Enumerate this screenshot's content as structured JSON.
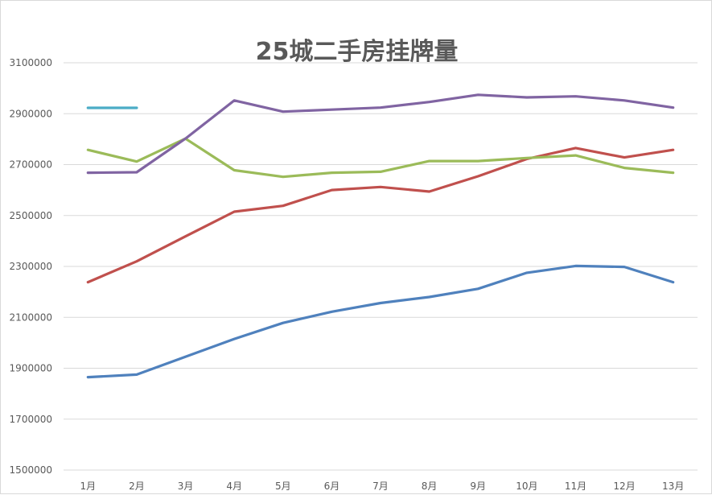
{
  "chart_data": {
    "type": "line",
    "title": "25城二手房挂牌量",
    "xlabel": "",
    "ylabel": "",
    "ylim": [
      1500000,
      3100000
    ],
    "yticks": [
      "1500000",
      "1700000",
      "1900000",
      "2100000",
      "2300000",
      "2500000",
      "2700000",
      "2900000",
      "3100000"
    ],
    "categories": [
      "1月",
      "2月",
      "3月",
      "4月",
      "5月",
      "6月",
      "7月",
      "8月",
      "9月",
      "10月",
      "11月",
      "12月",
      "13月"
    ],
    "grid": true,
    "legend": "none",
    "series": [
      {
        "color": "#4f81bd",
        "values": [
          1865000,
          1875000,
          1945000,
          2015000,
          2078000,
          2122000,
          2156000,
          2180000,
          2212000,
          2275000,
          2302000,
          2298000,
          2238000
        ]
      },
      {
        "color": "#c0504d",
        "values": [
          2238000,
          2320000,
          2418000,
          2515000,
          2538000,
          2600000,
          2612000,
          2594000,
          2654000,
          2722000,
          2765000,
          2728000,
          2758000
        ]
      },
      {
        "color": "#9bbb59",
        "values": [
          2758000,
          2712000,
          2802000,
          2678000,
          2652000,
          2668000,
          2672000,
          2714000,
          2714000,
          2726000,
          2736000,
          2687000,
          2668000
        ]
      },
      {
        "color": "#8064a2",
        "values": [
          2668000,
          2670000,
          2802000,
          2952000,
          2908000,
          2916000,
          2924000,
          2946000,
          2974000,
          2964000,
          2968000,
          2952000,
          2924000
        ]
      },
      {
        "color": "#4bacc6",
        "values": [
          2923000,
          2923000,
          null,
          null,
          null,
          null,
          null,
          null,
          null,
          null,
          null,
          null,
          null
        ]
      }
    ]
  }
}
